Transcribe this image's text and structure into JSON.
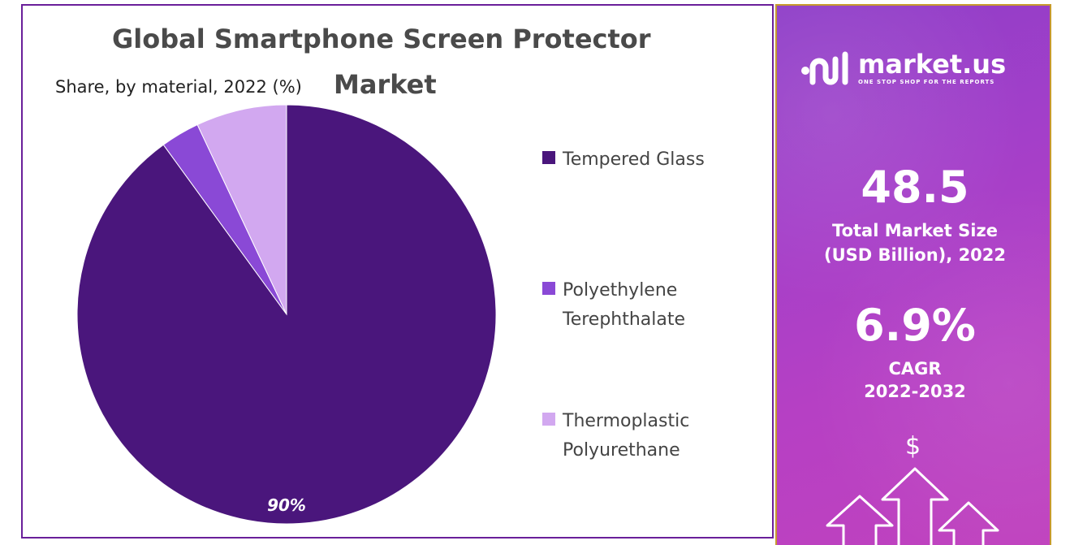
{
  "chart": {
    "title_line1": "Global Smartphone Screen Protector",
    "title_line2": "Market",
    "subtitle": "Share, by material, 2022 (%)"
  },
  "chart_data": {
    "type": "pie",
    "title": "Global Smartphone Screen Protector Market",
    "subtitle": "Share, by material, 2022 (%)",
    "categories": [
      "Tempered Glass",
      "Polyethylene Terephthalate",
      "Thermoplastic Polyurethane"
    ],
    "values": [
      90,
      3,
      7
    ],
    "data_labels": [
      "90%",
      "",
      ""
    ],
    "colors": [
      "#4a167c",
      "#8a49d6",
      "#d2a8f0"
    ],
    "legend_position": "right"
  },
  "legend": {
    "items": [
      {
        "label": "Tempered Glass",
        "color": "#4a167c"
      },
      {
        "label": "Polyethylene Terephthalate",
        "color": "#8a49d6"
      },
      {
        "label": "Thermoplastic Polyurethane",
        "color": "#d2a8f0"
      }
    ]
  },
  "side_panel": {
    "brand_name": "market.us",
    "brand_tagline": "ONE STOP SHOP FOR THE REPORTS",
    "market_size_value": "48.5",
    "market_size_label_line1": "Total Market Size",
    "market_size_label_line2": "(USD Billion), 2022",
    "cagr_value": "6.9%",
    "cagr_label_line1": "CAGR",
    "cagr_label_line2": "2022-2032",
    "currency_symbol": "$",
    "icons": [
      "market-us-logo-icon",
      "dollar-icon",
      "up-arrow-icon"
    ],
    "colors": {
      "accent": "#a43fc9",
      "border": "#c79a2e"
    }
  }
}
